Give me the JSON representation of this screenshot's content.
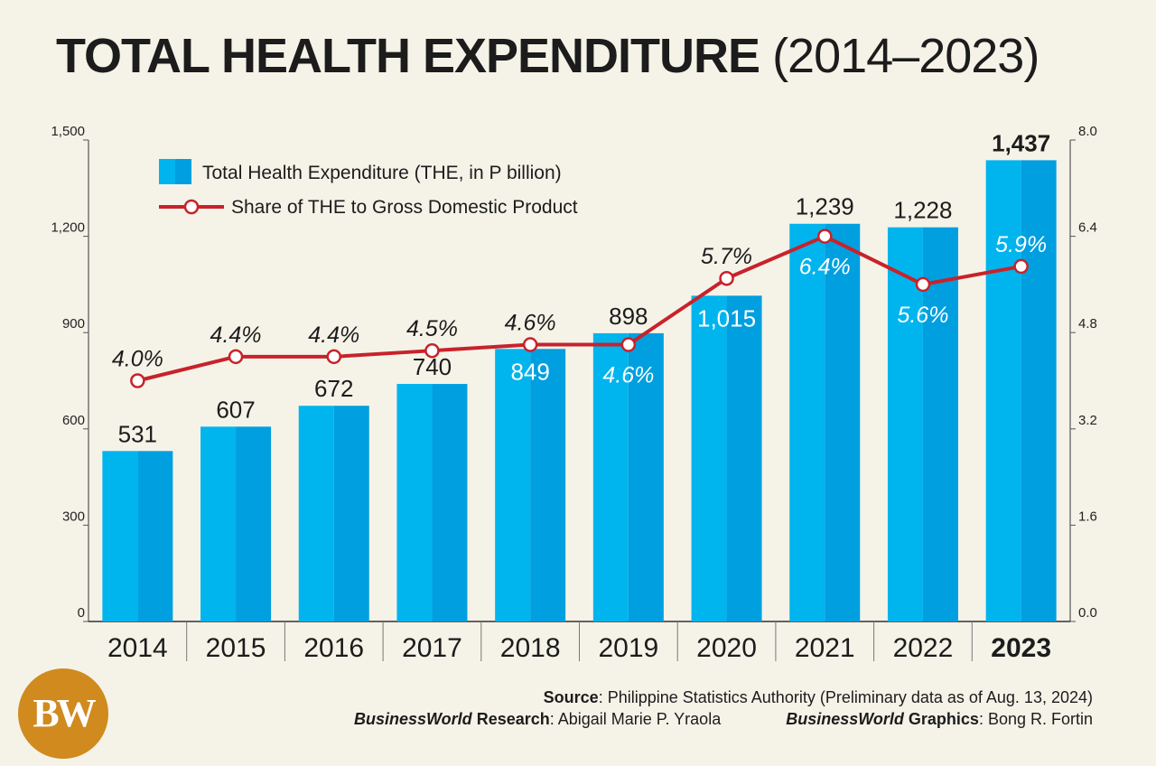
{
  "header": {
    "title_bold": "TOTAL HEALTH EXPENDITURE",
    "title_light": "(2014–2023)"
  },
  "colors": {
    "bar_light": "#00b4ee",
    "bar_dark": "#009fdf",
    "line": "#c8222a",
    "background": "#f5f3e8",
    "logo": "#d08a1e"
  },
  "chart_data": {
    "type": "bar",
    "categories": [
      "2014",
      "2015",
      "2016",
      "2017",
      "2018",
      "2019",
      "2020",
      "2021",
      "2022",
      "2023"
    ],
    "series": [
      {
        "name": "Total Health Expenditure (THE, in P billion)",
        "type": "bar",
        "axis": "left",
        "values": [
          531,
          607,
          672,
          740,
          849,
          898,
          1015,
          1239,
          1228,
          1437
        ],
        "labels": [
          "531",
          "607",
          "672",
          "740",
          "849",
          "898",
          "1,015",
          "1,239",
          "1,228",
          "1,437"
        ]
      },
      {
        "name": "Share of THE to Gross Domestic Product",
        "type": "line",
        "axis": "right",
        "values": [
          4.0,
          4.4,
          4.4,
          4.5,
          4.6,
          4.6,
          5.7,
          6.4,
          5.6,
          5.9
        ],
        "labels": [
          "4.0%",
          "4.4%",
          "4.4%",
          "4.5%",
          "4.6%",
          "4.6%",
          "5.7%",
          "6.4%",
          "5.6%",
          "5.9%"
        ]
      }
    ],
    "y_left": {
      "min": 0,
      "max": 1500,
      "ticks": [
        0,
        300,
        600,
        900,
        1200,
        1500
      ],
      "tick_labels": [
        "0",
        "300",
        "600",
        "900",
        "1,200",
        "1,500"
      ]
    },
    "y_right": {
      "min": 0,
      "max": 8,
      "ticks": [
        0,
        1.6,
        3.2,
        4.8,
        6.4,
        8.0
      ],
      "tick_labels": [
        "0.0",
        "1.6",
        "3.2",
        "4.8",
        "6.4",
        "8.0"
      ]
    },
    "highlight_category": "2023",
    "grid": false,
    "legend_position": "top-left"
  },
  "footer": {
    "logo_text": "BW",
    "source_label": "Source",
    "source_text": ": Philippine Statistics Authority (Preliminary data as of Aug. 13, 2024)",
    "research_brand": "BusinessWorld",
    "research_label": " Research",
    "research_text": ": Abigail Marie P. Yraola",
    "graphics_brand": "BusinessWorld",
    "graphics_label": " Graphics",
    "graphics_text": ": Bong R. Fortin"
  }
}
